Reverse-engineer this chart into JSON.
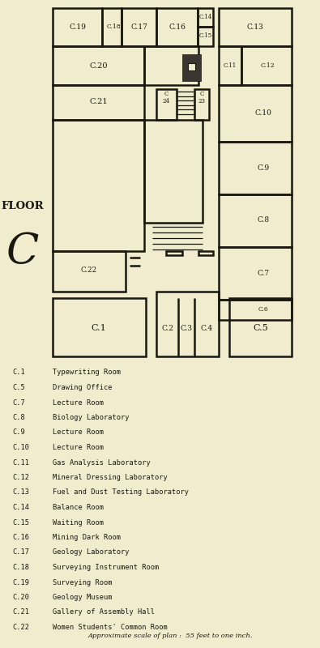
{
  "bg_color": "#f2ecce",
  "wall_color": "#1a1610",
  "floor_label": "FLOOR",
  "floor_letter": "C",
  "scale_note": "Approximate scale of plan :  55 feet to one inch.",
  "legend": [
    [
      "C.1",
      "Typewriting Room"
    ],
    [
      "C.5",
      "Drawing Office"
    ],
    [
      "C.7",
      "Lecture Room"
    ],
    [
      "C.8",
      "Biology Laboratory"
    ],
    [
      "C.9",
      "Lecture Room"
    ],
    [
      "C.10",
      "Lecture Room"
    ],
    [
      "C.11",
      "Gas Analysis Laboratory"
    ],
    [
      "C.12",
      "Mineral Dressing Laboratory"
    ],
    [
      "C.13",
      "Fuel and Dust Testing Laboratory"
    ],
    [
      "C.14",
      "Balance Room"
    ],
    [
      "C.15",
      "Waiting Room"
    ],
    [
      "C.16",
      "Mining Dark Room"
    ],
    [
      "C.17",
      "Geology Laboratory"
    ],
    [
      "C.18",
      "Surveying Instrument Room"
    ],
    [
      "C.19",
      "Surveying Room"
    ],
    [
      "C.20",
      "Geology Museum"
    ],
    [
      "C.21",
      "Gallery of Assembly Hall"
    ],
    [
      "C.22",
      "Women Students' Common Room"
    ]
  ]
}
